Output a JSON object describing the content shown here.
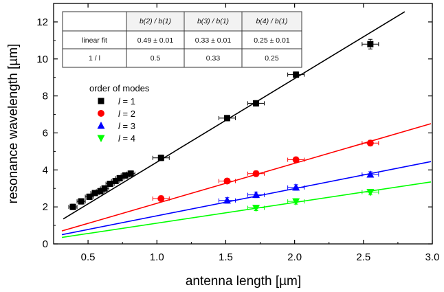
{
  "chart_data": {
    "type": "scatter",
    "xlabel": "antenna length [µm]",
    "ylabel": "resonance wavelength [µm]",
    "xlim": [
      0.25,
      3.0
    ],
    "ylim": [
      0,
      13
    ],
    "xticks": [
      0.5,
      1.0,
      1.5,
      2.0,
      2.5,
      3.0
    ],
    "xtick_labels": [
      "0.5",
      "1.0",
      "1.5",
      "2.0",
      "2.5",
      "3.0"
    ],
    "yticks": [
      0,
      2,
      4,
      6,
      8,
      10,
      12
    ],
    "ytick_labels": [
      "0",
      "2",
      "4",
      "6",
      "8",
      "10",
      "12"
    ],
    "legend": {
      "title": "order of modes",
      "placement": "upper-left"
    },
    "series": [
      {
        "name": "l = 1",
        "order": "1",
        "color": "#000000",
        "marker": "square",
        "x": [
          0.39,
          0.45,
          0.51,
          0.55,
          0.59,
          0.62,
          0.66,
          0.7,
          0.73,
          0.77,
          0.81,
          1.03,
          1.51,
          1.72,
          2.01,
          2.55
        ],
        "y": [
          2.0,
          2.3,
          2.55,
          2.75,
          2.85,
          3.0,
          3.25,
          3.4,
          3.55,
          3.7,
          3.8,
          4.65,
          6.8,
          7.6,
          9.15,
          10.8
        ],
        "fit": {
          "x": [
            0.32,
            2.8
          ],
          "y": [
            1.35,
            12.55
          ]
        }
      },
      {
        "name": "l = 2",
        "order": "2",
        "color": "#ff0000",
        "marker": "circle",
        "x": [
          1.03,
          1.51,
          1.72,
          2.01,
          2.55
        ],
        "y": [
          2.45,
          3.4,
          3.8,
          4.55,
          5.45
        ],
        "fit": {
          "x": [
            0.31,
            2.99
          ],
          "y": [
            0.7,
            6.5
          ]
        }
      },
      {
        "name": "l = 3",
        "order": "3",
        "color": "#0000ff",
        "marker": "triangle-up",
        "x": [
          1.51,
          1.72,
          2.01,
          2.55
        ],
        "y": [
          2.35,
          2.65,
          3.05,
          3.75
        ],
        "fit": {
          "x": [
            0.31,
            2.99
          ],
          "y": [
            0.5,
            4.45
          ]
        }
      },
      {
        "name": "l = 4",
        "order": "4",
        "color": "#00ff00",
        "marker": "triangle-down",
        "x": [
          1.72,
          2.01,
          2.55
        ],
        "y": [
          1.95,
          2.3,
          2.8
        ],
        "fit": {
          "x": [
            0.31,
            2.99
          ],
          "y": [
            0.35,
            3.35
          ]
        }
      }
    ],
    "table": {
      "headers": [
        "",
        "b(2) / b(1)",
        "b(3) / b(1)",
        "b(4) / b(1)"
      ],
      "rows": [
        [
          "linear fit",
          "0.49 ± 0.01",
          "0.33 ± 0.01",
          "0.25 ± 0.01"
        ],
        [
          "1 / l",
          "0.5",
          "0.33",
          "0.25"
        ]
      ]
    }
  }
}
